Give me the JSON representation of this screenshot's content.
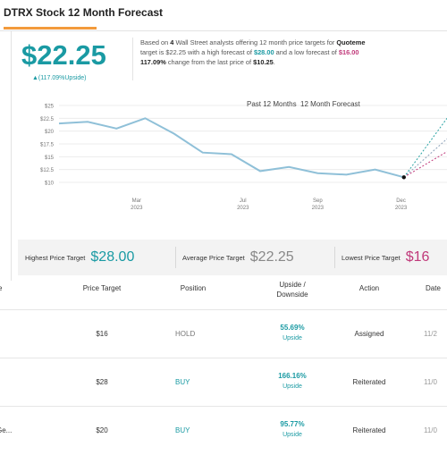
{
  "header": {
    "title": "DTRX Stock 12 Month Forecast"
  },
  "price": {
    "value": "$22.25",
    "change": "▲(117.09%Upside)"
  },
  "summary": {
    "line1_a": "Based on ",
    "analyst_count": "4",
    "line1_b": " Wall Street analysts offering 12 month price targets for ",
    "line1_c": "Quoteme",
    "line2_a": "target is $22.25 with a high forecast of ",
    "high": "$28.00",
    "line2_b": " and a low forecast of ",
    "low": "$16.00",
    "line3_a": "117.09%",
    "line3_b": " change from the last price of ",
    "last": "$10.25",
    "line3_c": "."
  },
  "chart_data": {
    "type": "line",
    "legend": [
      "Past 12 Months",
      "12 Month Forecast"
    ],
    "y_ticks": [
      "$25",
      "$22.5",
      "$20",
      "$17.5",
      "$15",
      "$12.5",
      "$10"
    ],
    "x_ticks": [
      {
        "month": "Mar",
        "year": "2023"
      },
      {
        "month": "Jul",
        "year": "2023"
      },
      {
        "month": "Sep",
        "year": "2023"
      },
      {
        "month": "Dec",
        "year": "2023"
      }
    ],
    "ylim": [
      10,
      25
    ],
    "xlim": [
      0,
      13.5
    ],
    "series": [
      {
        "color": "#8fc0d8",
        "x": [
          0,
          1,
          2,
          3,
          4,
          5,
          6,
          7,
          8,
          9,
          10,
          11,
          12
        ],
        "y": [
          21.5,
          21.8,
          20.5,
          22.5,
          19.5,
          15.8,
          15.5,
          12.2,
          13.0,
          11.8,
          11.5,
          12.5,
          11.0
        ]
      },
      {
        "color": "#29a3a3",
        "x": [
          12,
          13.5
        ],
        "y": [
          11.0,
          22.5
        ]
      },
      {
        "color": "#8aa0b8",
        "x": [
          12,
          13.5
        ],
        "y": [
          11.0,
          18.5
        ]
      },
      {
        "color": "#c0397a",
        "x": [
          12,
          13.5
        ],
        "y": [
          11.0,
          16.0
        ]
      }
    ]
  },
  "targets": {
    "high_label": "Highest Price Target",
    "high_value": "$28.00",
    "avg_label": "Average Price Target",
    "avg_value": "$22.25",
    "low_label": "Lowest Price Target",
    "low_value": "$16"
  },
  "table": {
    "headers": {
      "firm": "e",
      "target": "Price Target",
      "position": "Position",
      "upside_1": "Upside /",
      "upside_2": "Downside",
      "action": "Action",
      "date": "Date"
    },
    "rows": [
      {
        "firm": "",
        "target": "$16",
        "position": "HOLD",
        "pos_class": "pos-hold",
        "upside": "55.69%",
        "upside_label": "Upside",
        "action": "Assigned",
        "date": "11/2"
      },
      {
        "firm": "",
        "target": "$28",
        "position": "BUY",
        "pos_class": "pos-buy",
        "upside": "166.16%",
        "upside_label": "Upside",
        "action": "Reiterated",
        "date": "11/0"
      },
      {
        "firm": "Ge...",
        "target": "$20",
        "position": "BUY",
        "pos_class": "pos-buy",
        "upside": "95.77%",
        "upside_label": "Upside",
        "action": "Reiterated",
        "date": "11/0"
      }
    ]
  }
}
